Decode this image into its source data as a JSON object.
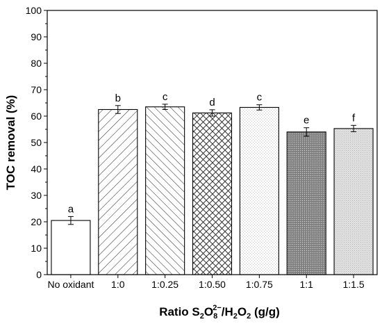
{
  "chart_data": {
    "type": "bar",
    "xlabel": {
      "prefix": "Ratio S",
      "sub1": "2",
      "o": "O",
      "sub2": "8",
      "sup2": "2−",
      "mid": "/H",
      "sub3": "2",
      "o2": "O",
      "sub4": "2",
      "suffix": " (g/g)"
    },
    "ylabel": "TOC removal (%)",
    "ylim": [
      0,
      100
    ],
    "yticks": [
      "0",
      "10",
      "20",
      "30",
      "40",
      "50",
      "60",
      "70",
      "80",
      "90",
      "100"
    ],
    "categories": [
      "No oxidant",
      "1:0",
      "1:0.25",
      "1:0.50",
      "1:0.75",
      "1:1",
      "1:1.5"
    ],
    "values": [
      20.5,
      62.5,
      63.5,
      61.2,
      63.3,
      54.0,
      55.3
    ],
    "errors": [
      1.5,
      1.5,
      1.0,
      1.2,
      1.0,
      1.6,
      1.2
    ],
    "significance": [
      "a",
      "b",
      "c",
      "d",
      "c",
      "e",
      "f"
    ],
    "patterns": [
      "none",
      "diagonal-forward",
      "diagonal-back",
      "crosshatch",
      "light-dots",
      "dense-dots",
      "medium-dots"
    ],
    "colors": {
      "axis": "#000000",
      "bar_fill": "#ffffff",
      "bar_stroke": "#000000"
    }
  }
}
